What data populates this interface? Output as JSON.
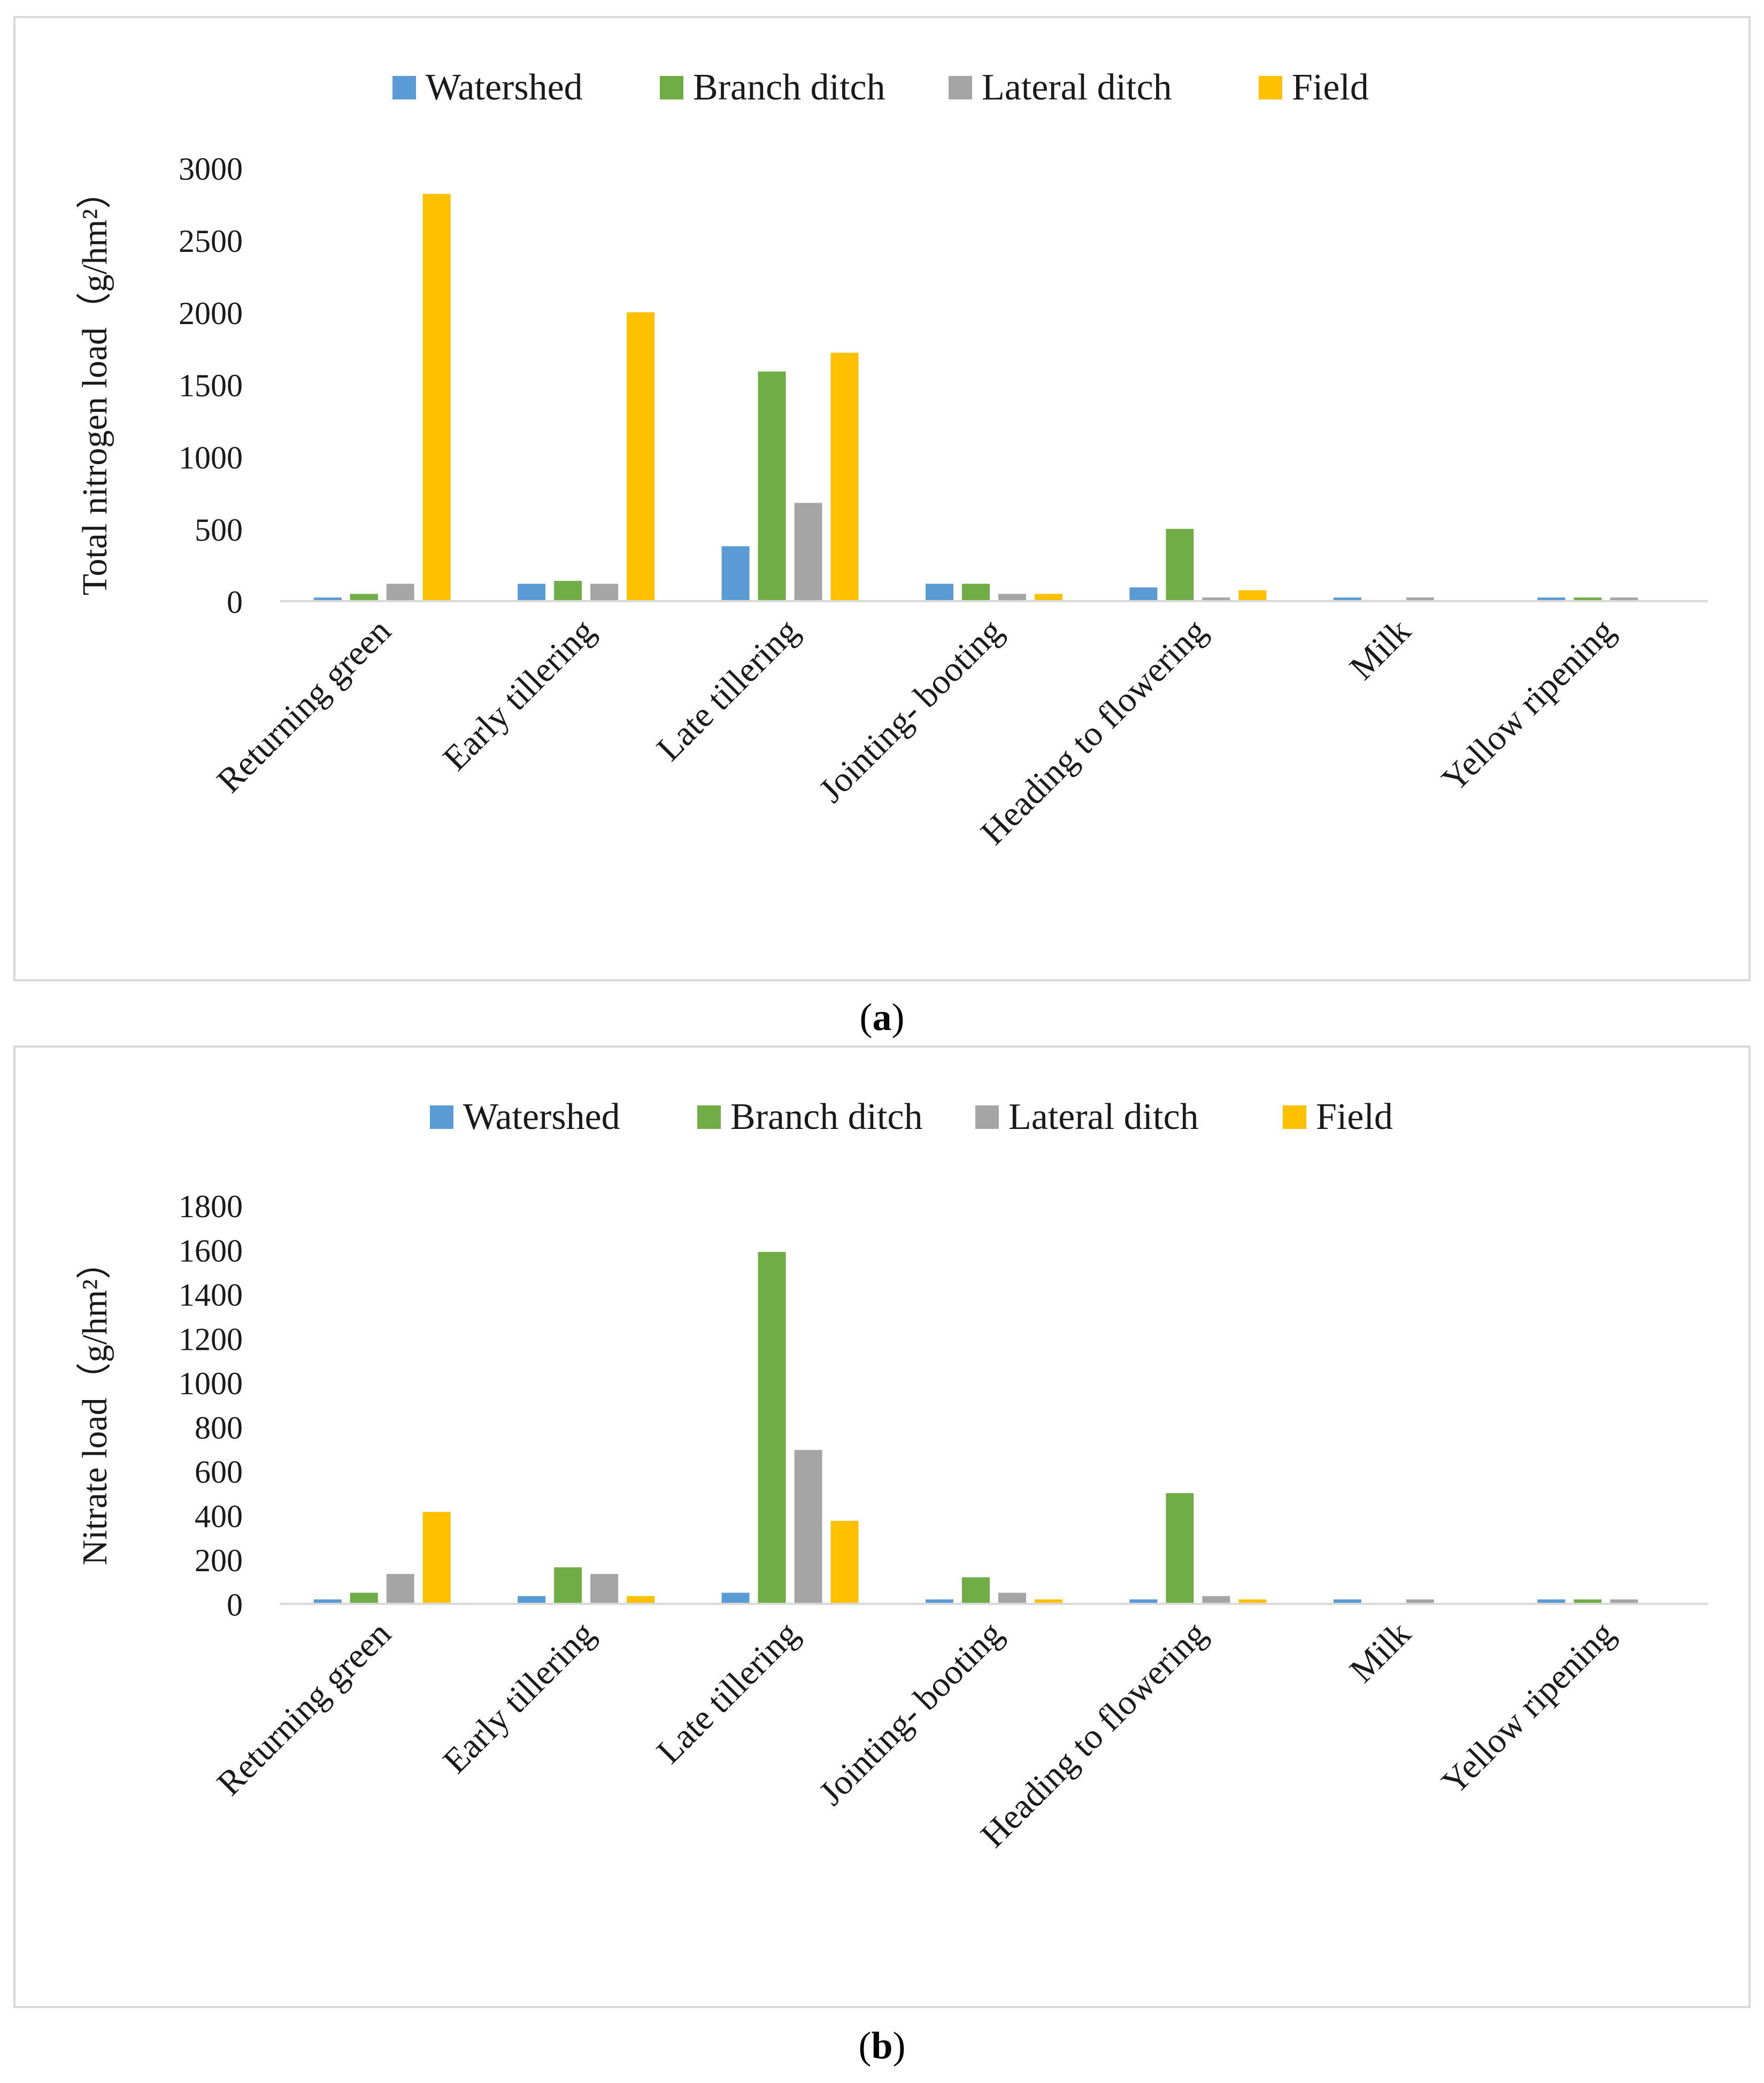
{
  "colors": {
    "Watershed": "#5b9bd5",
    "Branch ditch": "#70ad47",
    "Lateral ditch": "#a5a5a5",
    "Field": "#ffc000",
    "axis": "#d9d9d9"
  },
  "captions": {
    "a": {
      "open": "(",
      "letter": "a",
      "close": ")"
    },
    "b": {
      "open": "(",
      "letter": "b",
      "close": ")"
    }
  },
  "chart_data": [
    {
      "id": "a",
      "type": "bar",
      "title": "",
      "xlabel": "",
      "ylabel": "Total nitrogen load（g/hm²）",
      "ylim": [
        0,
        3000
      ],
      "yticks": [
        0,
        500,
        1000,
        1500,
        2000,
        2500,
        3000
      ],
      "grid": false,
      "legend": "top-center",
      "categories": [
        "Returning green",
        "Early tillering",
        "Late tillering",
        "Jointing- booting",
        "Heading to flowering",
        "Milk",
        "Yellow ripening"
      ],
      "series": [
        {
          "name": "Watershed",
          "values": [
            25,
            120,
            380,
            120,
            95,
            25,
            25
          ]
        },
        {
          "name": "Branch ditch",
          "values": [
            50,
            140,
            1590,
            120,
            500,
            0,
            25
          ]
        },
        {
          "name": "Lateral ditch",
          "values": [
            120,
            120,
            680,
            50,
            25,
            25,
            25
          ]
        },
        {
          "name": "Field",
          "values": [
            2820,
            2000,
            1720,
            50,
            75,
            0,
            0
          ]
        }
      ]
    },
    {
      "id": "b",
      "type": "bar",
      "title": "",
      "xlabel": "",
      "ylabel": "Nitrate load（g/hm²）",
      "ylim": [
        0,
        1800
      ],
      "yticks": [
        0,
        200,
        400,
        600,
        800,
        1000,
        1200,
        1400,
        1600,
        1800
      ],
      "grid": false,
      "legend": "top-center",
      "categories": [
        "Returning green",
        "Early tillering",
        "Late tillering",
        "Jointing- booting",
        "Heading to flowering",
        "Milk",
        "Yellow ripening"
      ],
      "series": [
        {
          "name": "Watershed",
          "values": [
            20,
            35,
            50,
            20,
            20,
            20,
            20
          ]
        },
        {
          "name": "Branch ditch",
          "values": [
            50,
            165,
            1590,
            120,
            500,
            0,
            20
          ]
        },
        {
          "name": "Lateral ditch",
          "values": [
            135,
            135,
            695,
            50,
            35,
            20,
            20
          ]
        },
        {
          "name": "Field",
          "values": [
            415,
            35,
            375,
            20,
            20,
            0,
            0
          ]
        }
      ]
    }
  ]
}
